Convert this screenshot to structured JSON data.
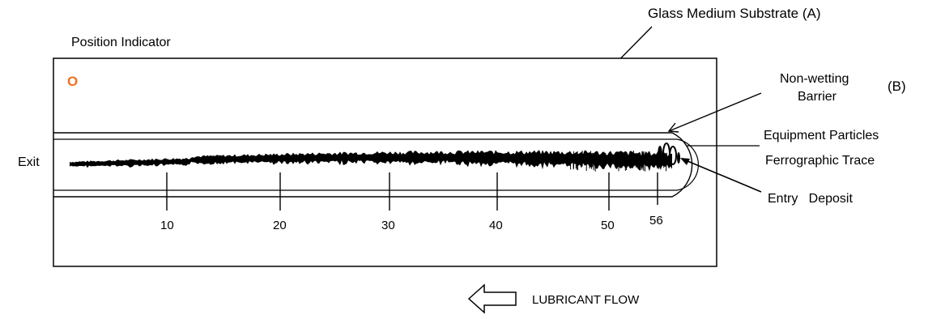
{
  "labels": {
    "position_indicator": "Position Indicator",
    "glass_substrate": "Glass Medium Substrate (A)",
    "non_wetting_line1": "Non-wetting",
    "non_wetting_line2": "Barrier",
    "non_wetting_marker": "(B)",
    "equipment_particles": "Equipment Particles",
    "ferrographic_trace": "Ferrographic Trace",
    "exit": "Exit",
    "entry_deposit": "Entry   Deposit",
    "lubricant_flow": "LUBRICANT FLOW",
    "position_marker": "O"
  },
  "scale": {
    "ticks": [
      "10",
      "20",
      "30",
      "40",
      "50",
      "56"
    ]
  },
  "colors": {
    "position_marker": "#f07020",
    "stroke": "#000000",
    "background": "#ffffff"
  },
  "icons": {
    "flow_arrow": "left-outline-arrow-icon"
  }
}
